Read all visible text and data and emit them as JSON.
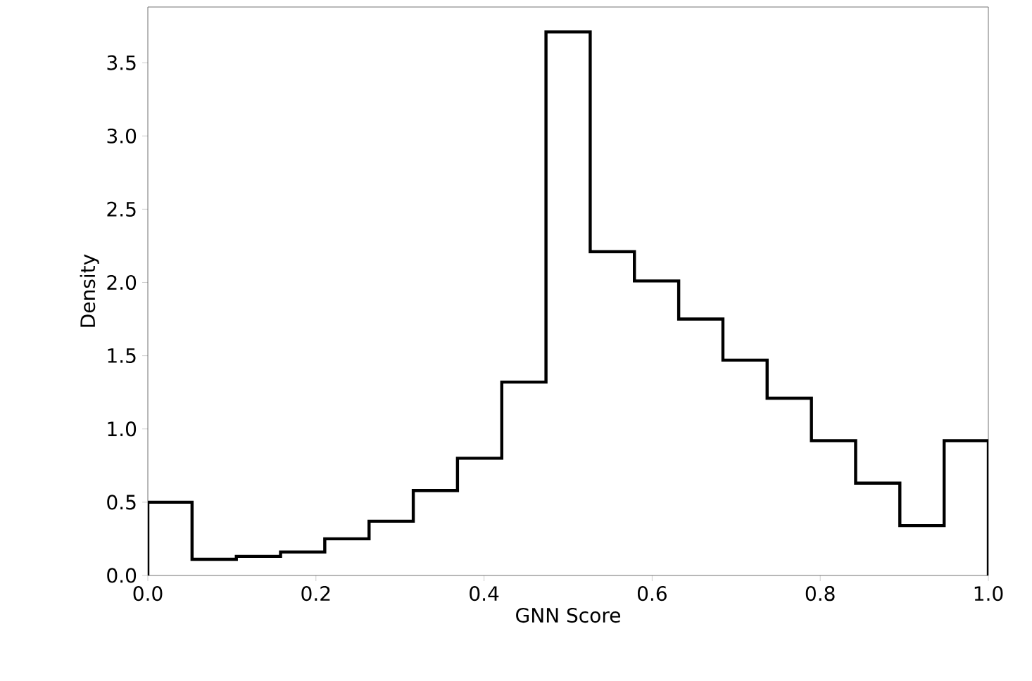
{
  "chart_data": {
    "type": "histogram",
    "xlabel": "GNN Score",
    "ylabel": "Density",
    "bins": [
      0,
      0.0526,
      0.1053,
      0.1579,
      0.2105,
      0.2632,
      0.3158,
      0.3684,
      0.4211,
      0.4737,
      0.5263,
      0.5789,
      0.6316,
      0.6842,
      0.7368,
      0.7895,
      0.8421,
      0.8947,
      0.9474,
      1.0
    ],
    "values": [
      0.5,
      0.11,
      0.13,
      0.16,
      0.25,
      0.37,
      0.58,
      0.8,
      1.32,
      3.71,
      2.21,
      2.01,
      1.75,
      1.47,
      1.21,
      0.92,
      0.63,
      0.34,
      0.92
    ],
    "color": "#000000",
    "xlim": [
      0.0,
      1.0
    ],
    "ylim": [
      0.0,
      3.88
    ],
    "xticks": [
      {
        "value": 0.0,
        "label": "0.0"
      },
      0.2,
      0.4,
      0.6,
      0.8,
      {
        "value": 1.0,
        "label": "1.0"
      }
    ],
    "yticks": [
      {
        "value": 0.0,
        "label": "0.0"
      },
      0.5,
      {
        "value": 1.0,
        "label": "1.0"
      },
      1.5,
      {
        "value": 2.0,
        "label": "2.0"
      },
      2.5,
      {
        "value": 3.0,
        "label": "3.0"
      },
      3.5
    ],
    "grid": false
  }
}
